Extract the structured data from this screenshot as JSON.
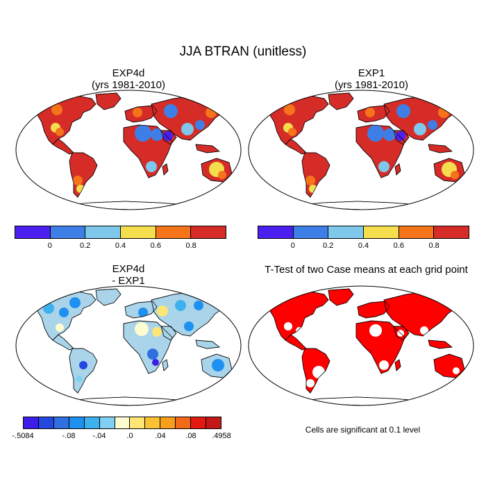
{
  "figure_title": "JJA BTRAN (unitless)",
  "panels": [
    {
      "title": [
        "EXP4d",
        "(yrs 1981-2010)"
      ]
    },
    {
      "title": [
        "EXP1",
        "(yrs 1981-2010)"
      ]
    },
    {
      "title": [
        "EXP4d",
        "- EXP1"
      ]
    },
    {
      "title": [
        "T-Test of two Case means at each grid point"
      ]
    }
  ],
  "colorbar_abs": {
    "colors": [
      "#4a1ff0",
      "#3d7fe6",
      "#7ec8ec",
      "#f4de4e",
      "#f5741a",
      "#d62c28"
    ],
    "labels": [
      "0",
      "0.2",
      "0.4",
      "0.6",
      "0.8"
    ]
  },
  "colorbar_diff": {
    "colors": [
      "#3c1ee8",
      "#2447e0",
      "#2f6fe0",
      "#1e90f0",
      "#3fb0ee",
      "#7fd0f2",
      "#fdfdd0",
      "#fde675",
      "#fcc236",
      "#f99e1c",
      "#f06a18",
      "#e21a12",
      "#c41818"
    ],
    "labels": [
      "-.5084",
      "-.08",
      "-.04",
      ".0",
      ".04",
      ".08",
      ".4958"
    ]
  },
  "note": "Cells are significant at 0.1 level",
  "map_colors": {
    "ocean": "#ffffff",
    "ttest_significant": "#ff0000",
    "diff_land": "#a9d4ea"
  }
}
